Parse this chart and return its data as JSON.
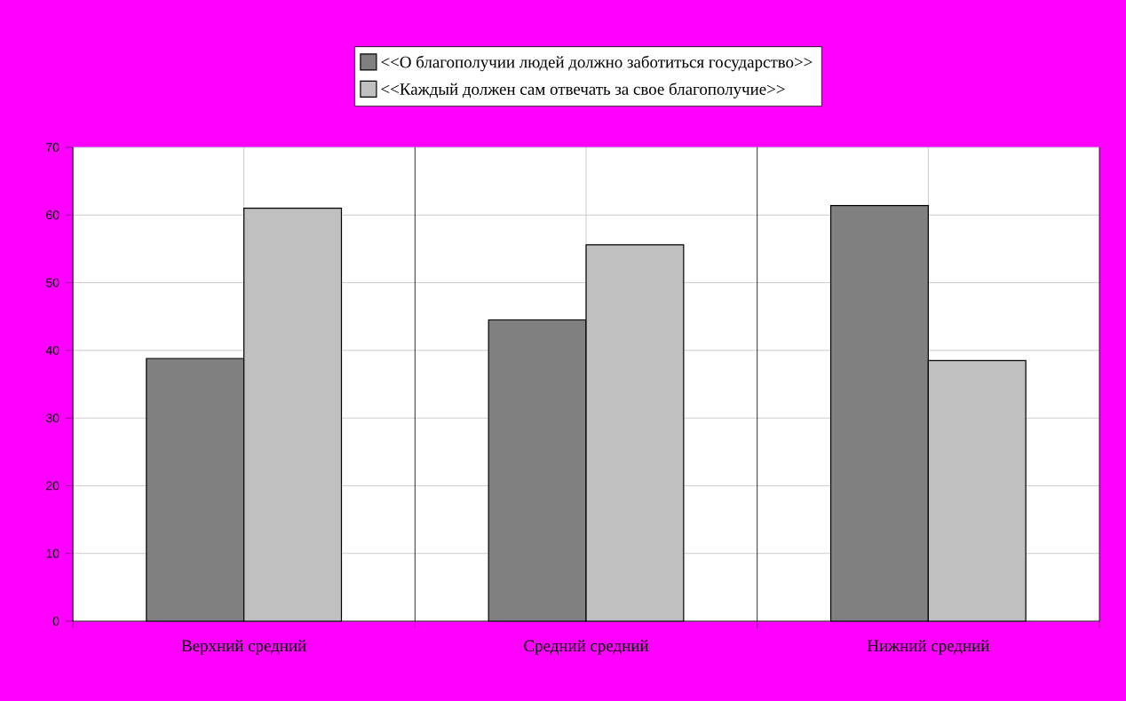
{
  "chart_data": {
    "type": "bar",
    "categories": [
      "Верхний средний",
      "Средний средний",
      "Нижний средний"
    ],
    "series": [
      {
        "name": "<<О благополучии людей должно заботиться государство>>",
        "color": "#808080",
        "values": [
          38.8,
          44.5,
          61.4
        ]
      },
      {
        "name": "<<Каждый должен сам отвечать за свое благополучие>>",
        "color": "#c0c0c0",
        "values": [
          61.0,
          55.6,
          38.5
        ]
      }
    ],
    "ylim": [
      0,
      70
    ],
    "yticks": [
      0,
      10,
      20,
      30,
      40,
      50,
      60,
      70
    ],
    "grid": true,
    "legend": "top"
  }
}
